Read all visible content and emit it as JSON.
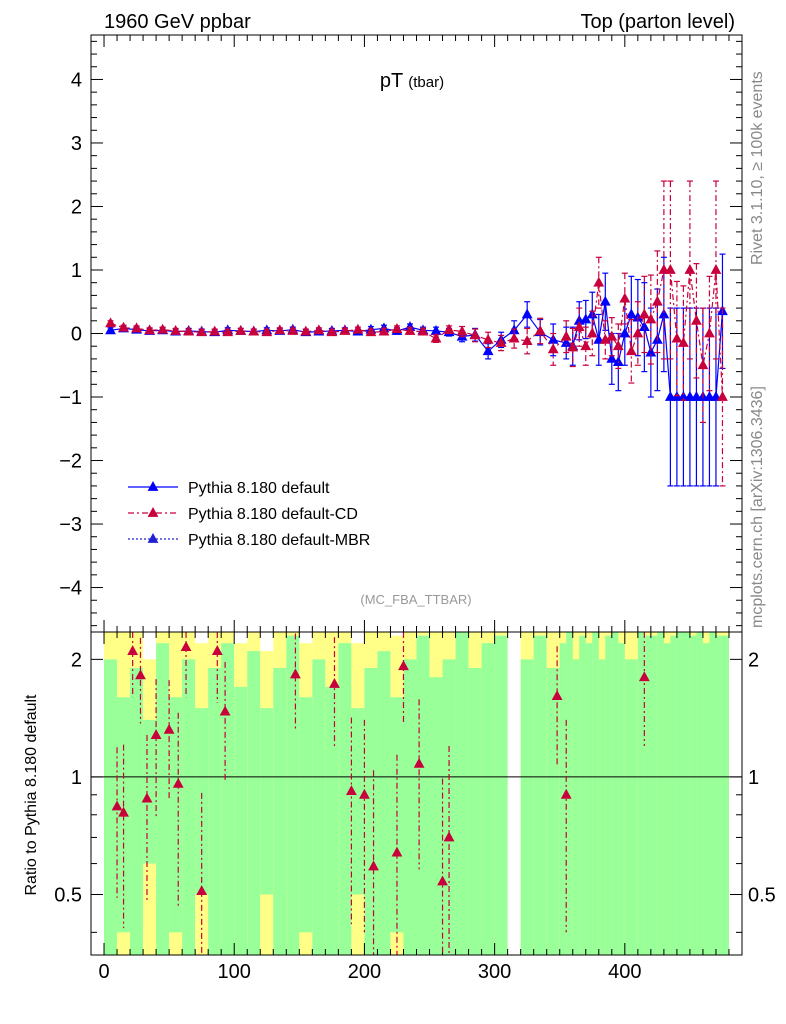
{
  "header": {
    "left": "1960 GeV ppbar",
    "right": "Top (parton level)"
  },
  "side_labels": {
    "rivet": "Rivet 3.1.10, ≥ 100k events",
    "mcplots": "mcplots.cern.ch [arXiv:1306.3436]"
  },
  "colors": {
    "default": "#0000ff",
    "cd": "#c8003c",
    "mbr": "#2020d0",
    "band_green": "#99ff99",
    "band_yellow": "#ffff88"
  },
  "chart_data": [
    {
      "type": "line",
      "title": "pT",
      "title_suffix": "(tbar)",
      "watermark": "(MC_FBA_TTBAR)",
      "xlabel": "",
      "ylabel": "",
      "xlim": [
        -10,
        490
      ],
      "ylim": [
        -4.7,
        4.7
      ],
      "y_ticks": [
        -4,
        -3,
        -2,
        -1,
        0,
        1,
        2,
        3,
        4
      ],
      "y_tick_labels": [
        "−4",
        "−3",
        "−2",
        "−1",
        "0",
        "1",
        "2",
        "3",
        "4"
      ],
      "legend": {
        "position": "lower-left",
        "entries": [
          "Pythia 8.180 default",
          "Pythia 8.180 default-CD",
          "Pythia 8.180 default-MBR"
        ]
      },
      "series": [
        {
          "name": "Pythia 8.180 default",
          "style": "solid",
          "x": [
            5,
            15,
            25,
            35,
            45,
            55,
            65,
            75,
            85,
            95,
            105,
            115,
            125,
            135,
            145,
            155,
            165,
            175,
            185,
            195,
            205,
            215,
            225,
            235,
            245,
            255,
            265,
            275,
            285,
            295,
            305,
            315,
            325,
            335,
            345,
            355,
            360,
            365,
            370,
            375,
            380,
            385,
            390,
            395,
            400,
            405,
            410,
            415,
            420,
            425,
            430,
            435,
            440,
            445,
            450,
            455,
            460,
            465,
            470,
            475
          ],
          "y": [
            0.05,
            0.08,
            0.06,
            0.04,
            0.05,
            0.03,
            0.04,
            0.03,
            0.02,
            0.05,
            0.04,
            0.03,
            0.05,
            0.04,
            0.06,
            0.02,
            0.03,
            0.04,
            0.05,
            0.03,
            0.06,
            0.08,
            0.04,
            0.1,
            0.05,
            0.04,
            0.02,
            -0.05,
            -0.02,
            -0.28,
            -0.1,
            0.05,
            0.3,
            0.02,
            -0.1,
            -0.15,
            -0.2,
            0.2,
            0.22,
            0.3,
            -0.1,
            0.5,
            -0.4,
            -0.45,
            0.0,
            0.3,
            0.25,
            0.1,
            -0.3,
            -0.1,
            0.3,
            -1.0,
            -1.0,
            -1.0,
            -1.0,
            -1.0,
            -1.0,
            -1.0,
            -1.0,
            0.35
          ],
          "yerr": [
            0.04,
            0.04,
            0.04,
            0.04,
            0.04,
            0.04,
            0.04,
            0.04,
            0.04,
            0.04,
            0.04,
            0.04,
            0.04,
            0.04,
            0.04,
            0.04,
            0.04,
            0.04,
            0.04,
            0.04,
            0.05,
            0.05,
            0.05,
            0.05,
            0.05,
            0.06,
            0.06,
            0.08,
            0.1,
            0.12,
            0.12,
            0.15,
            0.2,
            0.2,
            0.25,
            0.25,
            0.3,
            0.3,
            0.3,
            0.35,
            0.4,
            0.45,
            0.4,
            0.45,
            0.5,
            0.6,
            0.6,
            0.7,
            0.7,
            0.8,
            0.9,
            1.4,
            1.4,
            1.4,
            1.4,
            1.4,
            1.4,
            1.4,
            1.4,
            0.9
          ]
        },
        {
          "name": "Pythia 8.180 default-CD",
          "style": "dashdot",
          "x": [
            5,
            15,
            25,
            35,
            45,
            55,
            65,
            75,
            85,
            95,
            105,
            115,
            125,
            135,
            145,
            155,
            165,
            175,
            185,
            195,
            205,
            215,
            225,
            235,
            245,
            255,
            265,
            275,
            285,
            295,
            305,
            315,
            325,
            335,
            345,
            355,
            360,
            365,
            370,
            375,
            380,
            385,
            390,
            395,
            400,
            405,
            410,
            415,
            420,
            425,
            430,
            435,
            440,
            445,
            450,
            455,
            460,
            465,
            470,
            475
          ],
          "y": [
            0.16,
            0.09,
            0.08,
            0.05,
            0.06,
            0.04,
            0.03,
            0.02,
            0.03,
            0.02,
            0.04,
            0.03,
            0.02,
            0.05,
            0.04,
            0.03,
            0.05,
            0.02,
            0.04,
            0.06,
            0.02,
            0.03,
            0.07,
            0.04,
            0.03,
            -0.08,
            0.06,
            0.03,
            -0.03,
            -0.1,
            -0.15,
            -0.08,
            -0.12,
            0.04,
            -0.25,
            -0.05,
            -0.22,
            0.1,
            -0.2,
            0.0,
            0.8,
            -0.1,
            -0.05,
            -0.2,
            0.55,
            -0.28,
            0.0,
            0.3,
            0.22,
            0.5,
            1.0,
            1.0,
            -0.08,
            -0.15,
            1.0,
            0.2,
            -0.5,
            0.0,
            1.0,
            -1.0
          ],
          "yerr": [
            0.04,
            0.04,
            0.04,
            0.04,
            0.04,
            0.04,
            0.04,
            0.04,
            0.04,
            0.04,
            0.04,
            0.04,
            0.04,
            0.04,
            0.04,
            0.04,
            0.04,
            0.04,
            0.04,
            0.04,
            0.05,
            0.05,
            0.05,
            0.05,
            0.05,
            0.06,
            0.06,
            0.08,
            0.1,
            0.12,
            0.12,
            0.15,
            0.2,
            0.2,
            0.25,
            0.25,
            0.3,
            0.3,
            0.3,
            0.35,
            0.4,
            0.3,
            0.3,
            0.35,
            0.4,
            0.5,
            0.5,
            0.6,
            0.7,
            0.8,
            1.4,
            1.4,
            0.9,
            0.9,
            1.4,
            0.9,
            0.9,
            0.9,
            1.4,
            1.4
          ]
        },
        {
          "name": "Pythia 8.180 default-MBR",
          "style": "dotted",
          "x": [],
          "y": [],
          "yerr": []
        }
      ]
    },
    {
      "type": "line",
      "ylabel": "Ratio to Pythia 8.180 default",
      "xlim": [
        -10,
        490
      ],
      "ylim": [
        0.35,
        2.35
      ],
      "x_ticks": [
        0,
        100,
        200,
        300,
        400
      ],
      "x_tick_labels": [
        "0",
        "100",
        "200",
        "300",
        "400"
      ],
      "y_ticks": [
        0.5,
        1,
        2
      ],
      "y_tick_labels": [
        "0.5",
        "1",
        "2"
      ],
      "reference_line": 1,
      "bands": {
        "x": [
          5,
          15,
          25,
          35,
          45,
          55,
          65,
          75,
          85,
          95,
          105,
          115,
          125,
          135,
          145,
          155,
          165,
          175,
          185,
          195,
          205,
          215,
          225,
          235,
          245,
          255,
          265,
          275,
          285,
          295,
          305,
          315,
          325,
          335,
          345,
          355,
          360,
          365,
          370,
          375,
          380,
          385,
          390,
          395,
          400,
          405,
          410,
          415,
          420,
          425,
          430,
          435,
          440,
          445,
          450,
          455,
          460,
          465,
          470,
          475
        ],
        "green_half_width": [
          1.0,
          0.6,
          0.9,
          0.4,
          1.2,
          0.6,
          1.0,
          0.5,
          0.9,
          1.2,
          0.7,
          1.1,
          0.5,
          0.9,
          1.3,
          0.6,
          1.0,
          0.7,
          1.2,
          0.5,
          0.9,
          1.1,
          0.6,
          1.0,
          1.3,
          0.8,
          1.0,
          1.4,
          0.9,
          1.2,
          1.3,
          0.0,
          1.0,
          1.3,
          0.9,
          1.2,
          1.4,
          1.0,
          1.3,
          1.2,
          1.4,
          1.0,
          1.3,
          1.4,
          1.2,
          1.0,
          0.0,
          1.4,
          1.3,
          0.0,
          1.4,
          1.2,
          1.3,
          1.4,
          0.0,
          1.3,
          1.4,
          1.2,
          1.4,
          1.3
        ],
        "yellow_half_width": [
          1.4,
          1.4,
          1.4,
          1.0,
          1.4,
          1.4,
          1.4,
          1.2,
          1.4,
          1.4,
          1.2,
          1.4,
          1.1,
          1.4,
          1.4,
          1.2,
          1.4,
          1.4,
          1.4,
          1.2,
          1.4,
          1.4,
          1.3,
          1.4,
          1.4,
          1.4,
          1.4,
          1.4,
          1.4,
          1.4,
          1.4,
          0.0,
          1.4,
          1.4,
          1.4,
          1.4,
          1.4,
          1.4,
          1.4,
          1.4,
          1.4,
          1.4,
          1.4,
          1.4,
          1.4,
          1.4,
          0.0,
          1.4,
          1.4,
          0.0,
          1.4,
          1.4,
          1.4,
          1.4,
          0.0,
          1.4,
          1.4,
          1.4,
          1.4,
          1.4
        ]
      },
      "series": [
        {
          "name": "Pythia 8.180 default-CD",
          "style": "dashdot",
          "x": [
            10,
            15,
            22,
            28,
            33,
            40,
            50,
            57,
            63,
            75,
            87,
            93,
            147,
            177,
            190,
            200,
            207,
            225,
            230,
            242,
            260,
            265,
            348,
            355,
            415
          ],
          "y": [
            0.84,
            0.81,
            2.1,
            1.82,
            0.88,
            1.28,
            1.32,
            0.96,
            2.15,
            0.51,
            2.1,
            1.47,
            1.83,
            1.73,
            0.92,
            0.9,
            0.59,
            0.64,
            1.92,
            1.08,
            0.54,
            0.7,
            1.61,
            0.9,
            1.8
          ],
          "yerr": [
            0.35,
            0.4,
            0.5,
            0.45,
            0.4,
            0.5,
            0.45,
            0.5,
            0.55,
            0.4,
            0.55,
            0.5,
            0.5,
            0.55,
            0.5,
            0.5,
            0.45,
            0.5,
            0.55,
            0.5,
            0.45,
            0.5,
            0.55,
            0.5,
            0.6
          ]
        }
      ]
    }
  ]
}
